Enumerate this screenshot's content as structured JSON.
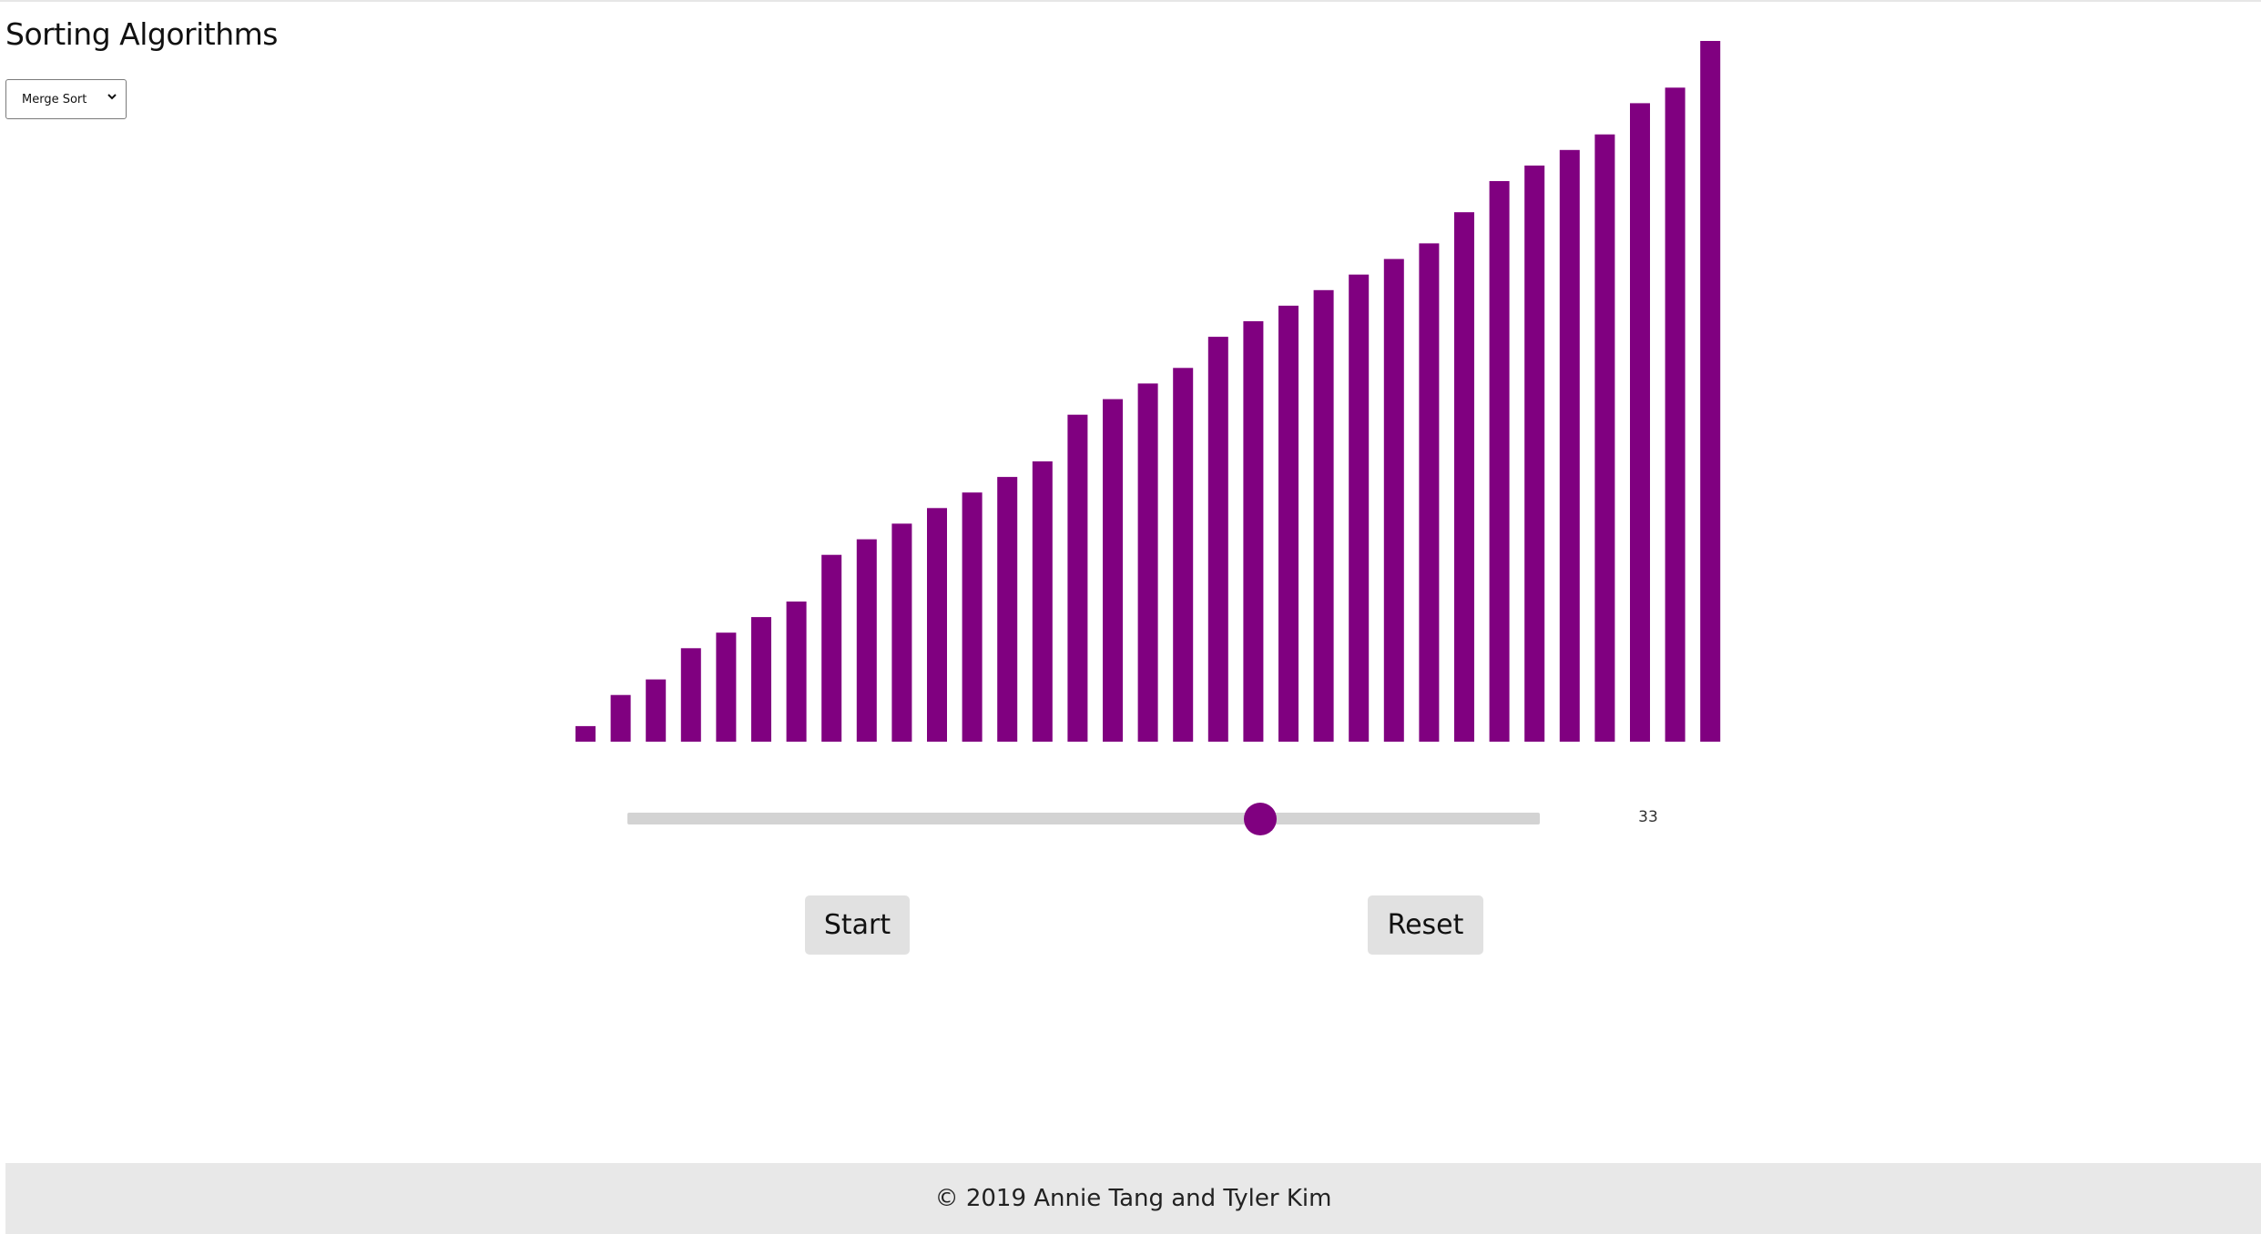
{
  "header": {
    "title": "Sorting Algorithms"
  },
  "algorithm_select": {
    "selected": "Merge Sort"
  },
  "chart_data": {
    "type": "bar",
    "color": "#800080",
    "values": [
      2,
      6,
      8,
      12,
      14,
      16,
      18,
      24,
      26,
      28,
      30,
      32,
      34,
      36,
      42,
      44,
      46,
      48,
      52,
      54,
      56,
      58,
      60,
      62,
      64,
      68,
      72,
      74,
      76,
      78,
      82,
      84,
      90
    ],
    "title": "",
    "xlabel": "",
    "ylabel": ""
  },
  "slider": {
    "value": "33",
    "position_fraction": 0.69
  },
  "controls": {
    "start_label": "Start",
    "reset_label": "Reset"
  },
  "footer": {
    "text": "© 2019 Annie Tang and Tyler Kim"
  },
  "colors": {
    "bar": "#800080",
    "accent": "#800080",
    "button_bg": "#e1e1e1",
    "footer_bg": "#e8e8e8"
  }
}
